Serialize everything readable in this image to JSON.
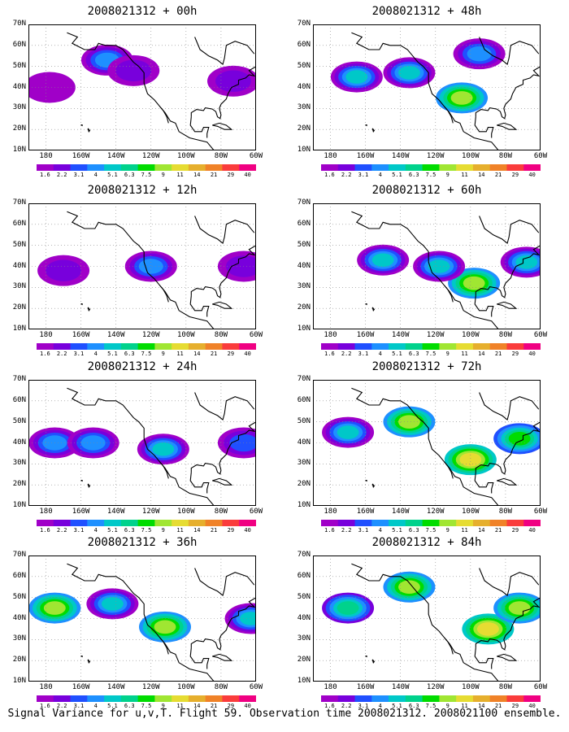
{
  "caption": "Signal Variance for u,v,T. Flight 59. Observation time 2008021312. 2008021100 ensemble.",
  "colorbar": {
    "labels": [
      "1.6",
      "2.2",
      "3.1",
      "4",
      "5.1",
      "6.3",
      "7.5",
      "9",
      "11",
      "14",
      "21",
      "29",
      "40"
    ],
    "colors": [
      "#a000c8",
      "#7800dc",
      "#2050ff",
      "#1e90ff",
      "#00c8c8",
      "#00d28c",
      "#00dc00",
      "#a0e632",
      "#e6dc32",
      "#e6af2d",
      "#f08228",
      "#fa3c3c",
      "#f00082"
    ]
  },
  "axes": {
    "y_ticks": [
      "70N",
      "60N",
      "50N",
      "40N",
      "30N",
      "20N",
      "10N"
    ],
    "x_ticks": [
      "180",
      "160W",
      "140W",
      "120W",
      "100W",
      "80W",
      "60W"
    ]
  },
  "chart_data": [
    {
      "type": "heatmap",
      "title": "2008021312 + 00h",
      "x_range": [
        "170E",
        "60W"
      ],
      "y_range": [
        "10N",
        "70N"
      ],
      "features": [
        {
          "lon": -145,
          "lat": 53,
          "value": 4
        },
        {
          "lon": -130,
          "lat": 48,
          "value": 2.2
        },
        {
          "lon": -73,
          "lat": 43,
          "value": 2.2
        },
        {
          "lon": -178,
          "lat": 40,
          "value": 1.6
        }
      ]
    },
    {
      "type": "heatmap",
      "title": "2008021312 + 12h",
      "x_range": [
        "170E",
        "60W"
      ],
      "y_range": [
        "10N",
        "70N"
      ],
      "features": [
        {
          "lon": -120,
          "lat": 40,
          "value": 4
        },
        {
          "lon": -170,
          "lat": 38,
          "value": 2.2
        },
        {
          "lon": -67,
          "lat": 40,
          "value": 2.2
        }
      ]
    },
    {
      "type": "heatmap",
      "title": "2008021312 + 24h",
      "x_range": [
        "170E",
        "60W"
      ],
      "y_range": [
        "10N",
        "70N"
      ],
      "features": [
        {
          "lon": -175,
          "lat": 40,
          "value": 4
        },
        {
          "lon": -153,
          "lat": 40,
          "value": 4
        },
        {
          "lon": -113,
          "lat": 37,
          "value": 5.1
        },
        {
          "lon": -67,
          "lat": 40,
          "value": 3.1
        }
      ]
    },
    {
      "type": "heatmap",
      "title": "2008021312 + 36h",
      "x_range": [
        "170E",
        "60W"
      ],
      "y_range": [
        "10N",
        "70N"
      ],
      "features": [
        {
          "lon": -175,
          "lat": 45,
          "value": 9
        },
        {
          "lon": -142,
          "lat": 47,
          "value": 5.1
        },
        {
          "lon": -112,
          "lat": 36,
          "value": 9
        },
        {
          "lon": -63,
          "lat": 40,
          "value": 5.1
        }
      ]
    },
    {
      "type": "heatmap",
      "title": "2008021312 + 48h",
      "x_range": [
        "170E",
        "60W"
      ],
      "y_range": [
        "10N",
        "70N"
      ],
      "features": [
        {
          "lon": -165,
          "lat": 45,
          "value": 5.1
        },
        {
          "lon": -135,
          "lat": 47,
          "value": 5.1
        },
        {
          "lon": -105,
          "lat": 35,
          "value": 9
        },
        {
          "lon": -95,
          "lat": 56,
          "value": 4
        }
      ]
    },
    {
      "type": "heatmap",
      "title": "2008021312 + 60h",
      "x_range": [
        "170E",
        "60W"
      ],
      "y_range": [
        "10N",
        "70N"
      ],
      "features": [
        {
          "lon": -98,
          "lat": 32,
          "value": 9
        },
        {
          "lon": -118,
          "lat": 40,
          "value": 5.1
        },
        {
          "lon": -150,
          "lat": 43,
          "value": 5.1
        },
        {
          "lon": -68,
          "lat": 42,
          "value": 5.1
        }
      ]
    },
    {
      "type": "heatmap",
      "title": "2008021312 + 72h",
      "x_range": [
        "170E",
        "60W"
      ],
      "y_range": [
        "10N",
        "70N"
      ],
      "features": [
        {
          "lon": -100,
          "lat": 32,
          "value": 11
        },
        {
          "lon": -135,
          "lat": 50,
          "value": 9
        },
        {
          "lon": -170,
          "lat": 45,
          "value": 5.1
        },
        {
          "lon": -72,
          "lat": 42,
          "value": 7.5
        }
      ]
    },
    {
      "type": "heatmap",
      "title": "2008021312 + 84h",
      "x_range": [
        "170E",
        "60W"
      ],
      "y_range": [
        "10N",
        "70N"
      ],
      "features": [
        {
          "lon": -90,
          "lat": 35,
          "value": 11
        },
        {
          "lon": -135,
          "lat": 55,
          "value": 9
        },
        {
          "lon": -170,
          "lat": 45,
          "value": 6.3
        },
        {
          "lon": -72,
          "lat": 45,
          "value": 9
        }
      ]
    }
  ]
}
